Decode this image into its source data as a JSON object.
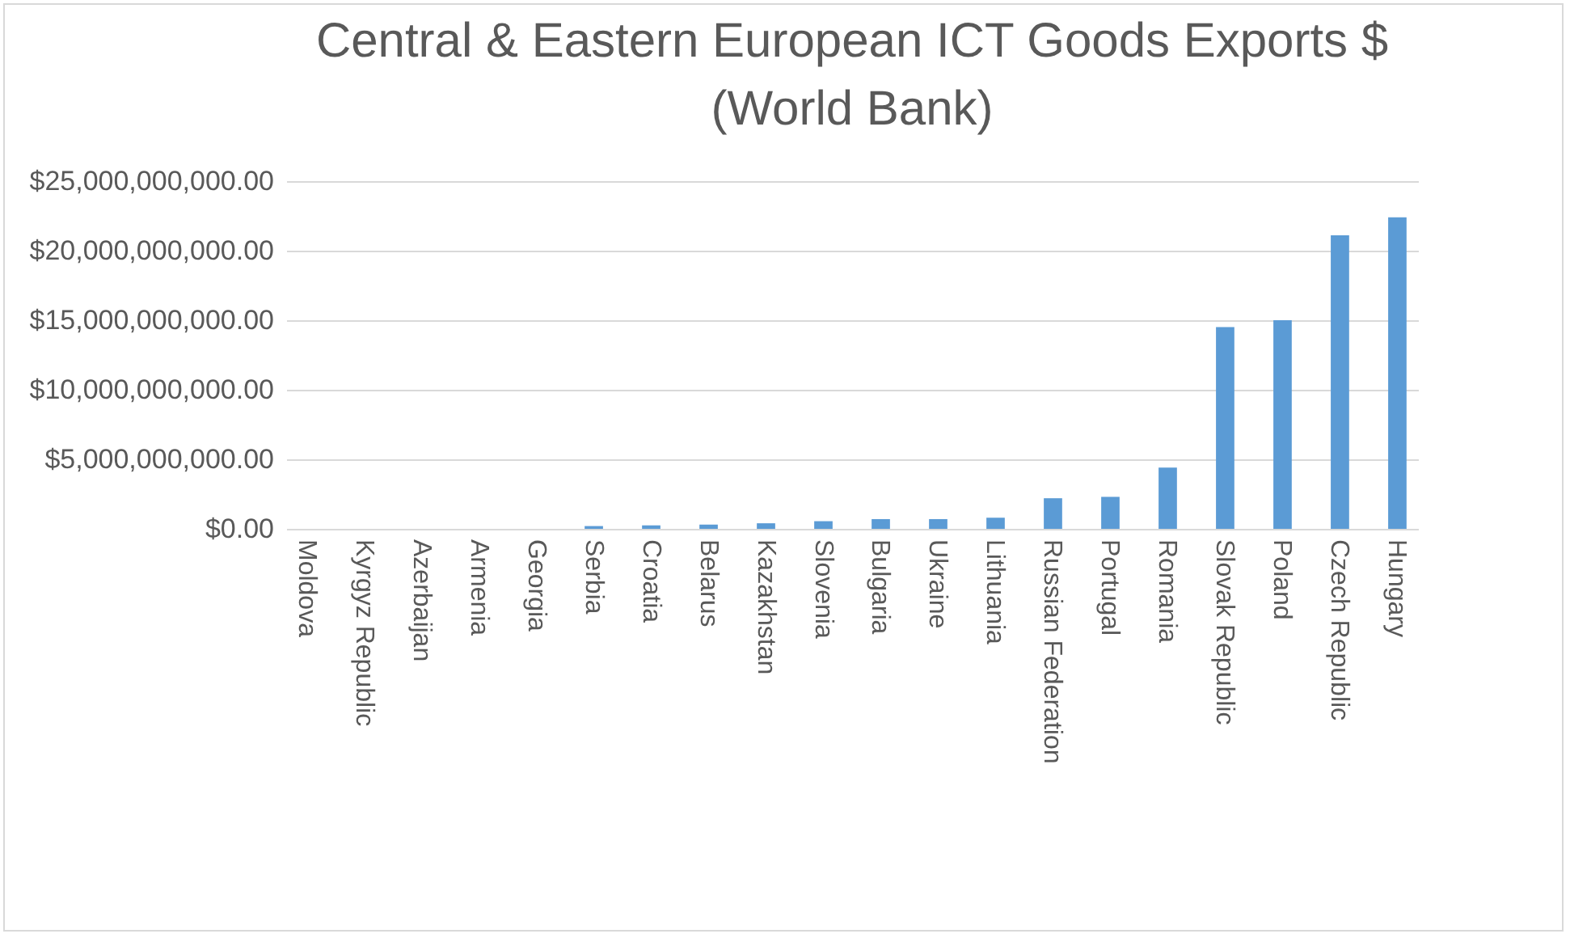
{
  "chart_data": {
    "type": "bar",
    "title": "Central & Eastern European ICT Goods Exports $\n(World Bank)",
    "categories": [
      "Moldova",
      "Kyrgyz Republic",
      "Azerbaijan",
      "Armenia",
      "Georgia",
      "Serbia",
      "Croatia",
      "Belarus",
      "Kazakhstan",
      "Slovenia",
      "Bulgaria",
      "Ukraine",
      "Lithuania",
      "Russian Federation",
      "Portugal",
      "Romania",
      "Slovak Republic",
      "Poland",
      "Czech Republic",
      "Hungary"
    ],
    "values": [
      null,
      null,
      null,
      null,
      null,
      200000000,
      250000000,
      300000000,
      400000000,
      550000000,
      700000000,
      700000000,
      800000000,
      2200000000,
      2300000000,
      4400000000,
      14500000000,
      15000000000,
      21100000000,
      22400000000
    ],
    "color": "#5b9bd5",
    "ylim": [
      0,
      25000000000
    ],
    "yticks": [
      {
        "value": 0,
        "label": "$0.00"
      },
      {
        "value": 5000000000,
        "label": "$5,000,000,000.00"
      },
      {
        "value": 10000000000,
        "label": "$10,000,000,000.00"
      },
      {
        "value": 15000000000,
        "label": "$15,000,000,000.00"
      },
      {
        "value": 20000000000,
        "label": "$20,000,000,000.00"
      },
      {
        "value": 25000000000,
        "label": "$25,000,000,000.00"
      }
    ],
    "grid": "y"
  }
}
